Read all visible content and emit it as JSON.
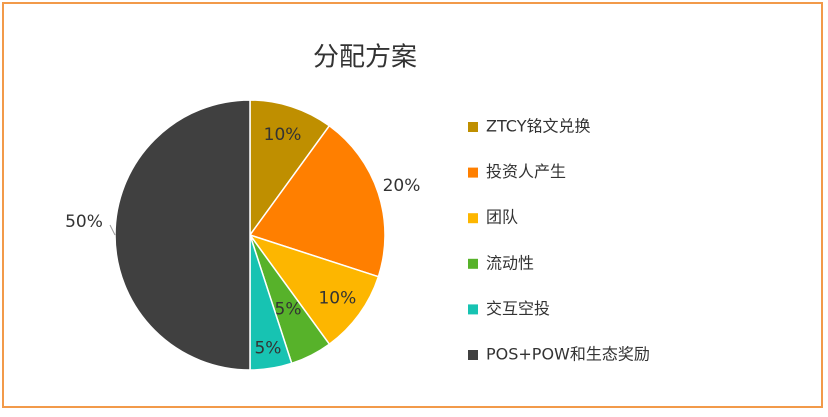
{
  "chart_data": {
    "type": "pie",
    "title": "分配方案",
    "categories": [
      "ZTCY铭文兑换",
      "投资人产生",
      "团队",
      "流动性",
      "交互空投",
      "POS+POW和生态奖励"
    ],
    "values": [
      10,
      20,
      10,
      5,
      5,
      50
    ],
    "value_labels": [
      "10%",
      "20%",
      "10%",
      "5%",
      "5%",
      "50%"
    ],
    "colors": [
      "#bf8f00",
      "#ff7f00",
      "#fdb600",
      "#57b22a",
      "#17c3b2",
      "#404040"
    ],
    "legend": "right"
  }
}
